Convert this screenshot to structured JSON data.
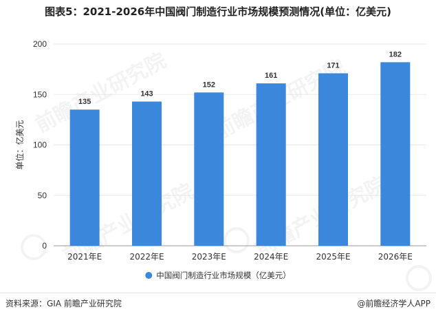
{
  "title": "图表5：2021-2026年中国阀门制造行业市场规模预测情况(单位：亿美元)",
  "source_text": "资料来源：GIA 前瞻产业研究院",
  "credit_text": "@前瞻经济学人APP",
  "watermark_text": "前瞻产业研究院",
  "colors": {
    "bar": "#3a87dc",
    "grid": "#e8e8e8",
    "axis": "#999999",
    "text": "#333333"
  },
  "chart_data": {
    "type": "bar",
    "categories": [
      "2021年E",
      "2022年E",
      "2023年E",
      "2024年E",
      "2025年E",
      "2026年E"
    ],
    "series": [
      {
        "name": "中国阀门制造行业市场规模（亿美元）",
        "values": [
          135,
          143,
          152,
          161,
          171,
          182
        ]
      }
    ],
    "ylabel": "单位：亿美元",
    "ylim": [
      0,
      200
    ],
    "yticks": [
      0,
      50,
      100,
      150,
      200
    ],
    "grid": true,
    "legend_position": "bottom"
  }
}
